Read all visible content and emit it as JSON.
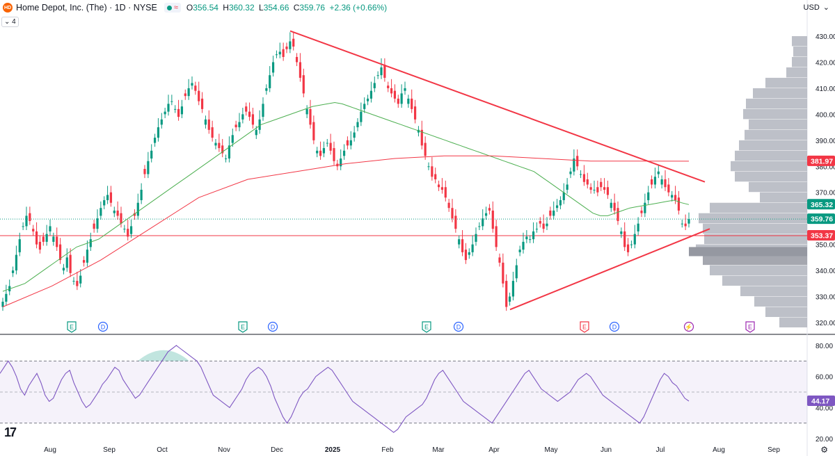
{
  "header": {
    "logo_text": "HD",
    "title": "Home Depot, Inc. (The) · 1D · NYSE",
    "ohlc": [
      {
        "k": "O",
        "v": "356.54"
      },
      {
        "k": "H",
        "v": "360.32"
      },
      {
        "k": "L",
        "v": "354.66"
      },
      {
        "k": "C",
        "v": "359.76"
      },
      {
        "k": "",
        "v": "+2.36 (+0.66%)"
      }
    ],
    "currency": "USD",
    "indicator_count": "4"
  },
  "colors": {
    "up": "#089981",
    "down": "#f23645",
    "sma_green": "#4caf50",
    "sma_red": "#f23645",
    "trendline": "#f23645",
    "rsi": "#7e57c2",
    "volume_profile": "#b2b5be"
  },
  "chart_data": [
    {
      "type": "candlestick",
      "title": "Home Depot, Inc. (The) · 1D · NYSE",
      "y_ticks": [
        "430.00",
        "420.00",
        "410.00",
        "400.00",
        "390.00",
        "380.00",
        "370.00",
        "360.00",
        "350.00",
        "340.00",
        "330.00",
        "320.00"
      ],
      "ylim": [
        317,
        433
      ],
      "x_ticks": [
        "Aug",
        "Sep",
        "Oct",
        "Nov",
        "Dec",
        "2025",
        "Feb",
        "Mar",
        "Apr",
        "May",
        "Jun",
        "Jul",
        "Aug",
        "Sep"
      ],
      "price_labels": [
        {
          "value": "381.97",
          "color": "#f23645",
          "level": 381.97
        },
        {
          "value": "365.32",
          "color": "#089981",
          "level": 365.32
        },
        {
          "value": "359.76",
          "color": "#089981",
          "level": 359.76
        },
        {
          "value": "353.37",
          "color": "#f23645",
          "level": 353.37
        }
      ],
      "closes": [
        328,
        331,
        334,
        340,
        346,
        352,
        357,
        361,
        359,
        355,
        350,
        348,
        351,
        354,
        357,
        353,
        349,
        344,
        341,
        345,
        339,
        336,
        334,
        338,
        343,
        348,
        352,
        356,
        360,
        364,
        367,
        369,
        366,
        363,
        361,
        358,
        356,
        353,
        357,
        361,
        366,
        371,
        377,
        382,
        386,
        391,
        395,
        398,
        401,
        404,
        405,
        402,
        399,
        403,
        407,
        410,
        412,
        409,
        405,
        402,
        398,
        394,
        391,
        389,
        387,
        385,
        383,
        388,
        392,
        395,
        397,
        400,
        401,
        399,
        396,
        394,
        398,
        404,
        410,
        415,
        420,
        423,
        424,
        422,
        425,
        428,
        426,
        420,
        414,
        408,
        402,
        396,
        390,
        386,
        384,
        387,
        389,
        386,
        382,
        380,
        383,
        386,
        388,
        390,
        393,
        397,
        401,
        404,
        406,
        409,
        412,
        415,
        418,
        414,
        410,
        408,
        406,
        404,
        408,
        410,
        406,
        402,
        398,
        394,
        388,
        384,
        380,
        376,
        375,
        372,
        371,
        368,
        364,
        360,
        356,
        352,
        347,
        344,
        347,
        350,
        354,
        357,
        360,
        362,
        363,
        356,
        349,
        343,
        335,
        326,
        330,
        336,
        342,
        348,
        351,
        353,
        352,
        355,
        356,
        358,
        356,
        358,
        361,
        363,
        365,
        367,
        370,
        373,
        378,
        383,
        380,
        377,
        374,
        373,
        371,
        371,
        370,
        372,
        371,
        369,
        366,
        363,
        359,
        355,
        349,
        347,
        350,
        354,
        358,
        362,
        366,
        370,
        373,
        376,
        378,
        375,
        372,
        370,
        369,
        367,
        363,
        358,
        357,
        359.76
      ],
      "sma_green": [
        332,
        333,
        334,
        335,
        337,
        339,
        341,
        343,
        345,
        347,
        349,
        350,
        351,
        352,
        354,
        356,
        358,
        360,
        362,
        364,
        366,
        368,
        370,
        372,
        374,
        376,
        378,
        380,
        382,
        384,
        386,
        388,
        390,
        392,
        394,
        396,
        397,
        398,
        399,
        400,
        401,
        402,
        403,
        403.5,
        404,
        404.5,
        404,
        403,
        402,
        401,
        400,
        399,
        398,
        397,
        396,
        395,
        394,
        393,
        392,
        391,
        390,
        389,
        388,
        387,
        386,
        385,
        384,
        383,
        382,
        381,
        380,
        379,
        378,
        376,
        374,
        372,
        370,
        368,
        366,
        364,
        362,
        361,
        361,
        362,
        363,
        364,
        364.5,
        365,
        365.5,
        366,
        366.5,
        367,
        366,
        365.32
      ],
      "sma_red": [
        326,
        334,
        344,
        356,
        368,
        375,
        378,
        381,
        383,
        384,
        384,
        383,
        382,
        382,
        381.97
      ],
      "trendlines": [
        {
          "from": [
            "Dec",
            432
          ],
          "to": [
            "Jul",
            374
          ]
        },
        {
          "from": [
            "Apr",
            325
          ],
          "to": [
            "Jul",
            356
          ]
        }
      ],
      "event_markers": [
        {
          "label": "E",
          "color": "#089981"
        },
        {
          "label": "D",
          "color": "#2962ff"
        },
        {
          "label": "E",
          "color": "#089981"
        },
        {
          "label": "D",
          "color": "#2962ff"
        },
        {
          "label": "E",
          "color": "#089981"
        },
        {
          "label": "D",
          "color": "#2962ff"
        },
        {
          "label": "E",
          "color": "#f23645"
        },
        {
          "label": "D",
          "color": "#2962ff"
        },
        {
          "label": "⚡",
          "color": "#9c27b0"
        },
        {
          "label": "E",
          "color": "#9c27b0"
        }
      ]
    },
    {
      "type": "line",
      "y_ticks": [
        "80.00",
        "60.00",
        "40.00",
        "20.00"
      ],
      "ylim": [
        20,
        80
      ],
      "band": [
        30,
        70
      ],
      "midline": 50,
      "last_value_label": "44.17",
      "last_value": 44.17,
      "values": [
        62,
        66,
        70,
        66,
        60,
        52,
        48,
        54,
        58,
        62,
        56,
        48,
        44,
        46,
        52,
        58,
        62,
        64,
        56,
        50,
        44,
        40,
        42,
        46,
        50,
        55,
        58,
        62,
        66,
        64,
        58,
        54,
        50,
        46,
        48,
        52,
        56,
        60,
        64,
        68,
        72,
        76,
        78,
        80,
        78,
        76,
        74,
        72,
        70,
        66,
        60,
        54,
        48,
        46,
        44,
        42,
        40,
        44,
        48,
        52,
        58,
        62,
        64,
        66,
        64,
        60,
        54,
        46,
        40,
        34,
        30,
        34,
        40,
        46,
        50,
        52,
        56,
        60,
        62,
        64,
        66,
        64,
        60,
        56,
        52,
        48,
        44,
        42,
        40,
        38,
        36,
        34,
        32,
        30,
        28,
        26,
        24,
        26,
        30,
        34,
        36,
        38,
        40,
        42,
        46,
        52,
        58,
        62,
        64,
        60,
        56,
        52,
        48,
        44,
        42,
        40,
        38,
        36,
        34,
        32,
        30,
        34,
        38,
        42,
        46,
        50,
        54,
        58,
        62,
        64,
        60,
        56,
        52,
        50,
        48,
        46,
        44,
        46,
        48,
        50,
        54,
        58,
        60,
        62,
        60,
        56,
        52,
        48,
        46,
        44,
        42,
        40,
        38,
        36,
        34,
        32,
        30,
        34,
        40,
        46,
        52,
        58,
        62,
        60,
        56,
        54,
        50,
        46,
        44.17
      ]
    }
  ]
}
